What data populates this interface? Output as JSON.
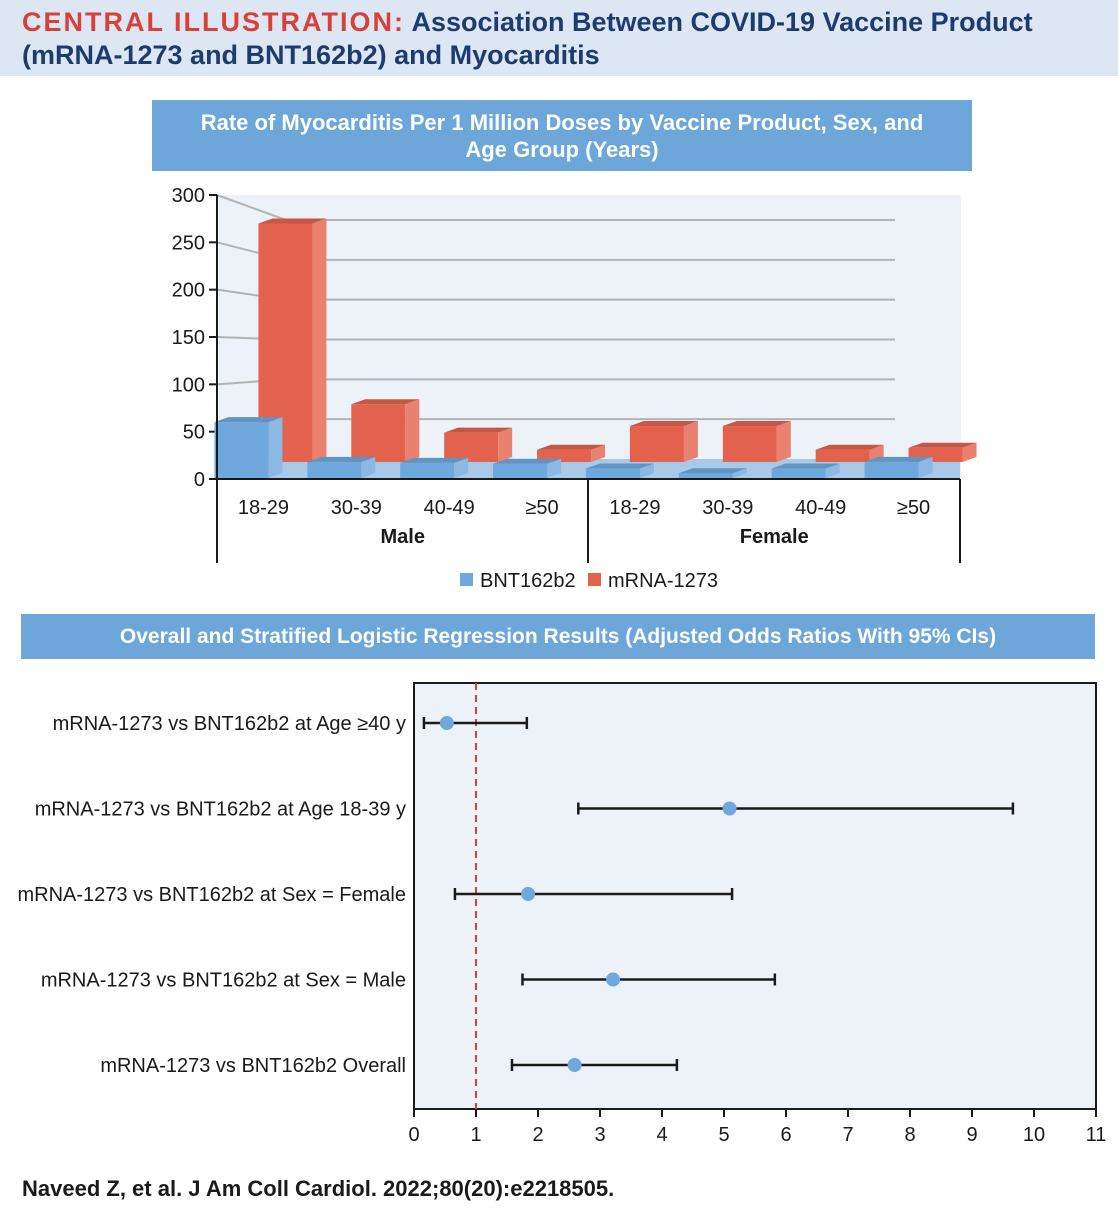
{
  "header": {
    "label": "CENTRAL ILLUSTRATION:",
    "title_line1": "Association Between COVID-19 Vaccine Product",
    "title_line2": "(mRNA-1273 and BNT162b2) and Myocarditis"
  },
  "colors": {
    "bnt": "#6ea8dc",
    "mrna": "#e3624d",
    "band": "#6da7d9",
    "header_bg": "#dde6f3",
    "plot_bg": "#edf2f9",
    "reference_line": "#d9403a"
  },
  "citation": "Naveed Z, et al. J Am Coll Cardiol. 2022;80(20):e2218505.",
  "chart_data": [
    {
      "type": "bar",
      "style": "3d-grouped",
      "title": "Rate of Myocarditis Per 1 Million Doses by Vaccine Product, Sex, and Age Group (Years)",
      "categories": [
        "18-29",
        "30-39",
        "40-49",
        "≥50",
        "18-29",
        "30-39",
        "40-49",
        "≥50"
      ],
      "groups": [
        {
          "label": "Male",
          "categories": [
            "18-29",
            "30-39",
            "40-49",
            "≥50"
          ]
        },
        {
          "label": "Female",
          "categories": [
            "18-29",
            "30-39",
            "40-49",
            "≥50"
          ]
        }
      ],
      "series": [
        {
          "name": "BNT162b2",
          "color": "#6ea8dc",
          "values": [
            59,
            17,
            16,
            15,
            10,
            5,
            10,
            17
          ]
        },
        {
          "name": "mRNA-1273",
          "color": "#e3624d",
          "values": [
            252,
            61,
            31,
            13,
            38,
            38,
            13,
            15
          ]
        }
      ],
      "ylim": [
        0,
        300
      ],
      "yticks": [
        0,
        50,
        100,
        150,
        200,
        250,
        300
      ],
      "grid": true,
      "legend": "bottom"
    },
    {
      "type": "forest",
      "title": "Overall and Stratified Logistic Regression Results (Adjusted Odds Ratios With 95% CIs)",
      "rows": [
        {
          "label": "mRNA-1273 vs BNT162b2 at Age ≥40 y",
          "estimate": 0.53,
          "lower": 0.16,
          "upper": 1.82
        },
        {
          "label": "mRNA-1273 vs BNT162b2 at Age 18-39 y",
          "estimate": 5.09,
          "lower": 2.65,
          "upper": 9.66
        },
        {
          "label": "mRNA-1273 vs BNT162b2 at Sex = Female",
          "estimate": 1.84,
          "lower": 0.66,
          "upper": 5.13
        },
        {
          "label": "mRNA-1273 vs BNT162b2 at Sex = Male",
          "estimate": 3.21,
          "lower": 1.75,
          "upper": 5.82
        },
        {
          "label": "mRNA-1273 vs BNT162b2 Overall",
          "estimate": 2.59,
          "lower": 1.58,
          "upper": 4.24
        }
      ],
      "xlim": [
        0,
        11
      ],
      "xticks": [
        0,
        1,
        2,
        3,
        4,
        5,
        6,
        7,
        8,
        9,
        10,
        11
      ],
      "reference_line": 1
    }
  ]
}
